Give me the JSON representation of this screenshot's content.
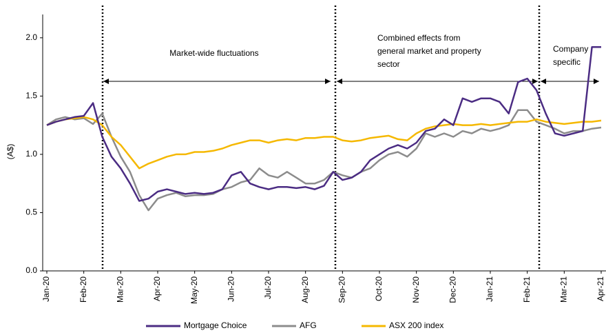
{
  "chart_data": {
    "type": "line",
    "y_label": "(A$)",
    "categories": [
      "Jan-20",
      null,
      null,
      null,
      "Feb-20",
      null,
      null,
      null,
      "Mar-20",
      null,
      null,
      null,
      "Apr-20",
      null,
      null,
      null,
      "May-20",
      null,
      null,
      null,
      "Jun-20",
      null,
      null,
      null,
      "Jul-20",
      null,
      null,
      null,
      "Aug-20",
      null,
      null,
      null,
      "Sep-20",
      null,
      null,
      null,
      "Oct-20",
      null,
      null,
      null,
      "Nov-20",
      null,
      null,
      null,
      "Dec-20",
      null,
      null,
      null,
      "Jan-21",
      null,
      null,
      null,
      "Feb-21",
      null,
      null,
      null,
      "Mar-21",
      null,
      null,
      null,
      "Apr-21"
    ],
    "series": [
      {
        "name": "Mortgage Choice",
        "color": "#4b2c83",
        "values": [
          1.25,
          1.28,
          1.3,
          1.32,
          1.33,
          1.44,
          1.15,
          0.98,
          0.88,
          0.75,
          0.6,
          0.62,
          0.68,
          0.7,
          0.68,
          0.66,
          0.67,
          0.66,
          0.67,
          0.7,
          0.82,
          0.85,
          0.75,
          0.72,
          0.7,
          0.72,
          0.72,
          0.71,
          0.72,
          0.7,
          0.73,
          0.85,
          0.78,
          0.8,
          0.85,
          0.95,
          1.0,
          1.05,
          1.08,
          1.05,
          1.1,
          1.2,
          1.22,
          1.3,
          1.25,
          1.48,
          1.45,
          1.48,
          1.48,
          1.45,
          1.35,
          1.62,
          1.65,
          1.55,
          1.35,
          1.18,
          1.16,
          1.18,
          1.2,
          1.92,
          1.92
        ]
      },
      {
        "name": "AFG",
        "color": "#8c8c8c",
        "values": [
          1.25,
          1.3,
          1.32,
          1.3,
          1.31,
          1.26,
          1.35,
          1.15,
          0.98,
          0.85,
          0.65,
          0.52,
          0.62,
          0.65,
          0.67,
          0.64,
          0.65,
          0.65,
          0.66,
          0.7,
          0.72,
          0.76,
          0.78,
          0.88,
          0.82,
          0.8,
          0.85,
          0.8,
          0.75,
          0.75,
          0.78,
          0.85,
          0.82,
          0.8,
          0.85,
          0.88,
          0.95,
          1.0,
          1.02,
          0.98,
          1.05,
          1.18,
          1.15,
          1.18,
          1.15,
          1.2,
          1.18,
          1.22,
          1.2,
          1.22,
          1.25,
          1.38,
          1.38,
          1.28,
          1.25,
          1.22,
          1.18,
          1.2,
          1.2,
          1.22,
          1.23
        ]
      },
      {
        "name": "ASX 200 index",
        "color": "#f5b800",
        "values": [
          1.25,
          1.28,
          1.3,
          1.31,
          1.32,
          1.3,
          1.25,
          1.15,
          1.08,
          0.98,
          0.88,
          0.92,
          0.95,
          0.98,
          1.0,
          1.0,
          1.02,
          1.02,
          1.03,
          1.05,
          1.08,
          1.1,
          1.12,
          1.12,
          1.1,
          1.12,
          1.13,
          1.12,
          1.14,
          1.14,
          1.15,
          1.15,
          1.12,
          1.11,
          1.12,
          1.14,
          1.15,
          1.16,
          1.13,
          1.12,
          1.18,
          1.22,
          1.24,
          1.25,
          1.26,
          1.25,
          1.25,
          1.26,
          1.25,
          1.26,
          1.27,
          1.28,
          1.28,
          1.3,
          1.28,
          1.27,
          1.26,
          1.27,
          1.28,
          1.28,
          1.29
        ]
      }
    ],
    "ylim": [
      0,
      2.2
    ],
    "yticks": [
      {
        "value": 0,
        "label": "0.0"
      },
      0.5,
      {
        "value": 1,
        "label": "1.0"
      },
      1.5,
      {
        "value": 2,
        "label": "2.0"
      }
    ],
    "grid": false,
    "legend": "bottom",
    "annotations": [
      {
        "lines": [
          "Market-wide fluctuations"
        ]
      },
      {
        "lines": [
          "Combined effects from",
          "general market and property",
          "sector"
        ]
      },
      {
        "lines": [
          "Company",
          "specific"
        ]
      }
    ]
  }
}
